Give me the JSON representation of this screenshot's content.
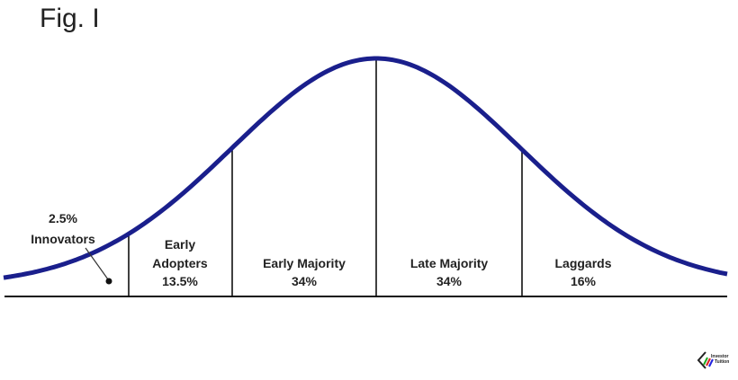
{
  "title": "Fig. I",
  "curve_color": "#1a1f8c",
  "segments": [
    {
      "name": "Innovators",
      "percent": "2.5%"
    },
    {
      "name": "Early Adopters",
      "name_lines": [
        "Early",
        "Adopters"
      ],
      "percent": "13.5%"
    },
    {
      "name": "Early Majority",
      "percent": "34%"
    },
    {
      "name": "Late Majority",
      "percent": "34%"
    },
    {
      "name": "Laggards",
      "percent": "16%"
    }
  ],
  "logo": {
    "text_lines": [
      "Investor",
      "Tuition"
    ]
  }
}
